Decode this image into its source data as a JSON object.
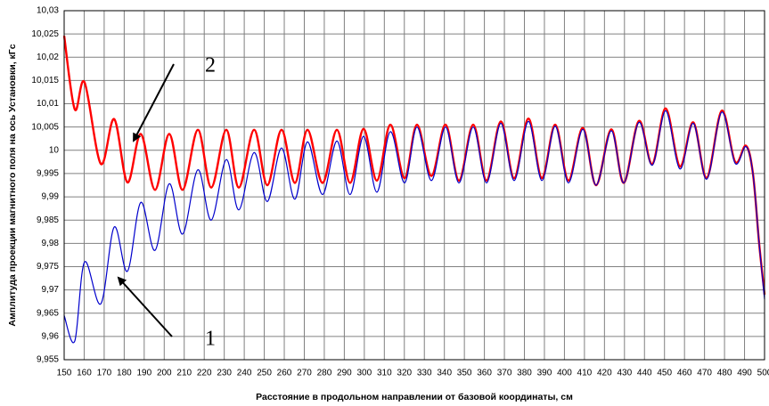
{
  "chart_data": {
    "type": "line",
    "y_label": "Амплитуда проекции магнитного поля на ось Установки, кГс",
    "x_label": "Расстояние в продольном направлении от базовой координаты, см",
    "annotations": [
      "2",
      "1"
    ],
    "x": [
      150,
      155.3,
      160.2,
      168.3,
      175,
      181.6,
      188.3,
      195.4,
      202.5,
      209.2,
      216.8,
      223.5,
      231,
      237.3,
      244.9,
      251.5,
      258.6,
      265.3,
      271.6,
      279.1,
      286.3,
      292.9,
      299.6,
      306.3,
      313,
      320.1,
      326.3,
      333.5,
      340.6,
      347.3,
      354.4,
      361.1,
      368.2,
      374.9,
      382,
      388.7,
      395.4,
      402,
      409.2,
      415.8,
      423.4,
      429.7,
      437.2,
      443.9,
      450.6,
      457.7,
      464.4,
      471.1,
      478.6,
      485.3,
      490.7,
      494.2,
      497.3,
      500
    ],
    "series": [
      {
        "name": "2",
        "color": "#ff0000",
        "values": [
          10.0246,
          10.0088,
          10.0146,
          9.9971,
          10.0067,
          9.9931,
          10.0035,
          9.9915,
          10.0035,
          9.9915,
          10.0044,
          9.992,
          10.0044,
          9.992,
          10.0044,
          9.9925,
          10.0044,
          9.993,
          10.0044,
          9.993,
          10.0044,
          9.993,
          10.0046,
          9.9935,
          10.0055,
          9.994,
          10.0055,
          9.9945,
          10.0055,
          9.9935,
          10.0055,
          9.9935,
          10.0062,
          9.994,
          10.0068,
          9.994,
          10.0055,
          9.9935,
          10.0048,
          9.9925,
          10.0045,
          9.993,
          10.0063,
          9.997,
          10.009,
          9.9965,
          10.006,
          9.994,
          10.0085,
          9.9975,
          10.001,
          9.995,
          9.98,
          9.969
        ]
      },
      {
        "name": "1",
        "color": "#0000cc",
        "values": [
          9.9645,
          9.959,
          9.976,
          9.967,
          9.9835,
          9.974,
          9.9888,
          9.9785,
          9.9928,
          9.982,
          9.9958,
          9.985,
          9.998,
          9.9872,
          9.9995,
          9.989,
          10.0005,
          9.9895,
          10.0018,
          9.9905,
          10.002,
          9.9905,
          10.003,
          9.991,
          10.004,
          9.993,
          10.005,
          9.9935,
          10.005,
          9.993,
          10.005,
          9.993,
          10.0058,
          9.9935,
          10.0062,
          9.9935,
          10.0052,
          9.993,
          10.0045,
          9.9925,
          10.0042,
          9.993,
          10.006,
          9.9968,
          10.0085,
          9.996,
          10.0058,
          9.9938,
          10.0082,
          9.9972,
          10.0008,
          9.995,
          9.98,
          9.968
        ]
      }
    ],
    "xlim": [
      150,
      500
    ],
    "xticks": [
      150,
      160,
      170,
      180,
      190,
      200,
      210,
      220,
      230,
      240,
      250,
      260,
      270,
      280,
      290,
      300,
      310,
      320,
      330,
      340,
      350,
      360,
      370,
      380,
      390,
      400,
      410,
      420,
      430,
      440,
      450,
      460,
      470,
      480,
      490,
      500
    ],
    "ylim": [
      9.955,
      10.03
    ],
    "yticks": [
      {
        "value": 9.955,
        "label": "9,955"
      },
      {
        "value": 9.96,
        "label": "9,96"
      },
      {
        "value": 9.965,
        "label": "9,965"
      },
      {
        "value": 9.97,
        "label": "9,97"
      },
      {
        "value": 9.975,
        "label": "9,975"
      },
      {
        "value": 9.98,
        "label": "9,98"
      },
      {
        "value": 9.985,
        "label": "9,985"
      },
      {
        "value": 9.99,
        "label": "9,99"
      },
      {
        "value": 9.995,
        "label": "9,995"
      },
      10,
      {
        "value": 10.005,
        "label": "10,005"
      },
      {
        "value": 10.01,
        "label": "10,01"
      },
      {
        "value": 10.015,
        "label": "10,015"
      },
      {
        "value": 10.02,
        "label": "10,02"
      },
      {
        "value": 10.025,
        "label": "10,025"
      },
      {
        "value": 10.03,
        "label": "10,03"
      }
    ],
    "grid": true
  }
}
